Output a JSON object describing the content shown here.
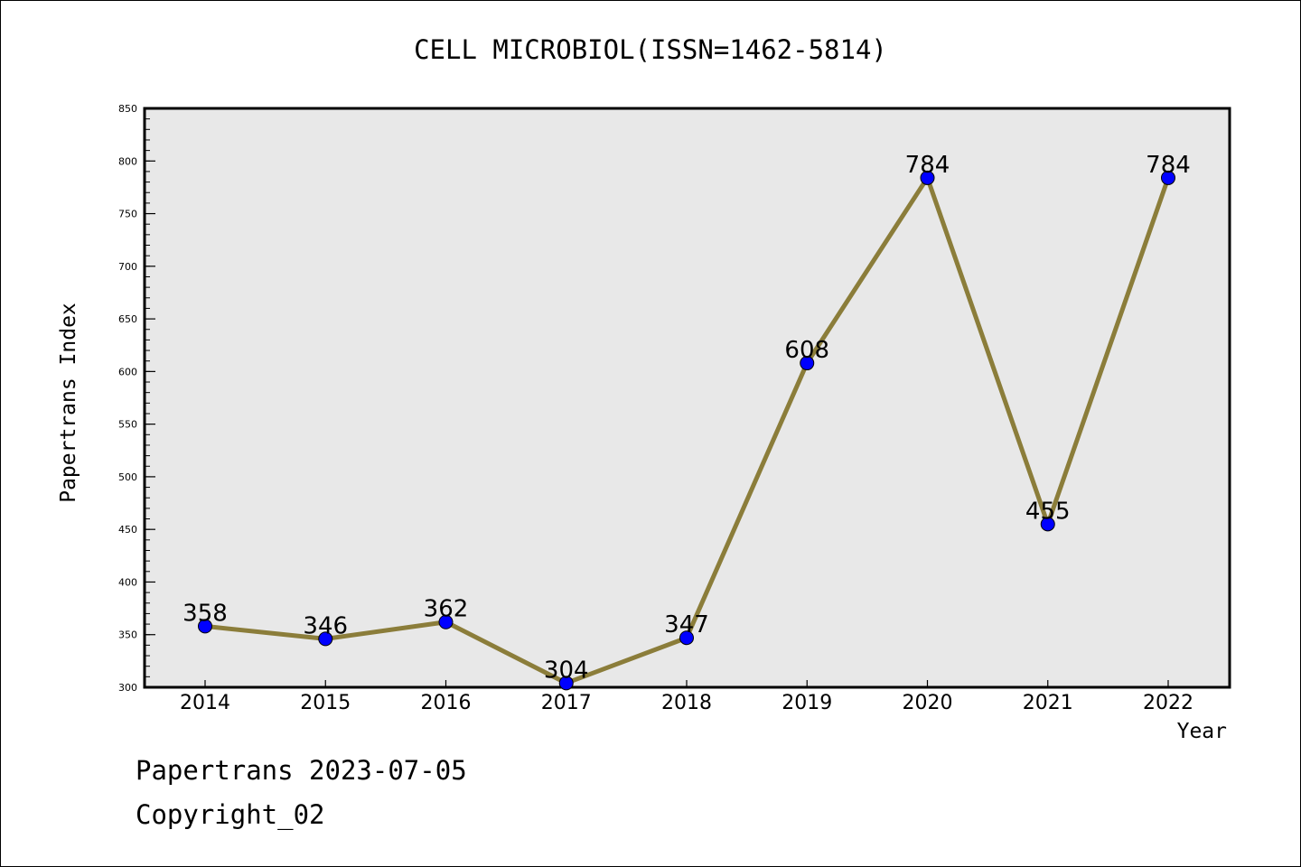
{
  "chart_data": {
    "type": "line",
    "title": "CELL MICROBIOL(ISSN=1462-5814)",
    "xlabel": "Year",
    "ylabel": "Papertrans Index",
    "categories": [
      "2014",
      "2015",
      "2016",
      "2017",
      "2018",
      "2019",
      "2020",
      "2021",
      "2022"
    ],
    "series": [
      {
        "values": [
          358,
          346,
          362,
          304,
          347,
          608,
          784,
          455,
          784
        ]
      }
    ],
    "data_labels": [
      "358",
      "346",
      "362",
      "304",
      "347",
      "608",
      "784",
      "455",
      "784"
    ],
    "ylim": [
      300,
      850
    ],
    "yticks": [
      300,
      350,
      400,
      450,
      500,
      550,
      600,
      650,
      700,
      750,
      800,
      850
    ],
    "y_minor_step": 10,
    "grid": false,
    "colors": {
      "line": "#8b7d3a",
      "marker": "#0000ff",
      "plot_background": "#e8e8e8"
    }
  },
  "footer": {
    "date_line": "Papertrans 2023-07-05",
    "copyright_line": "Copyright_02"
  }
}
